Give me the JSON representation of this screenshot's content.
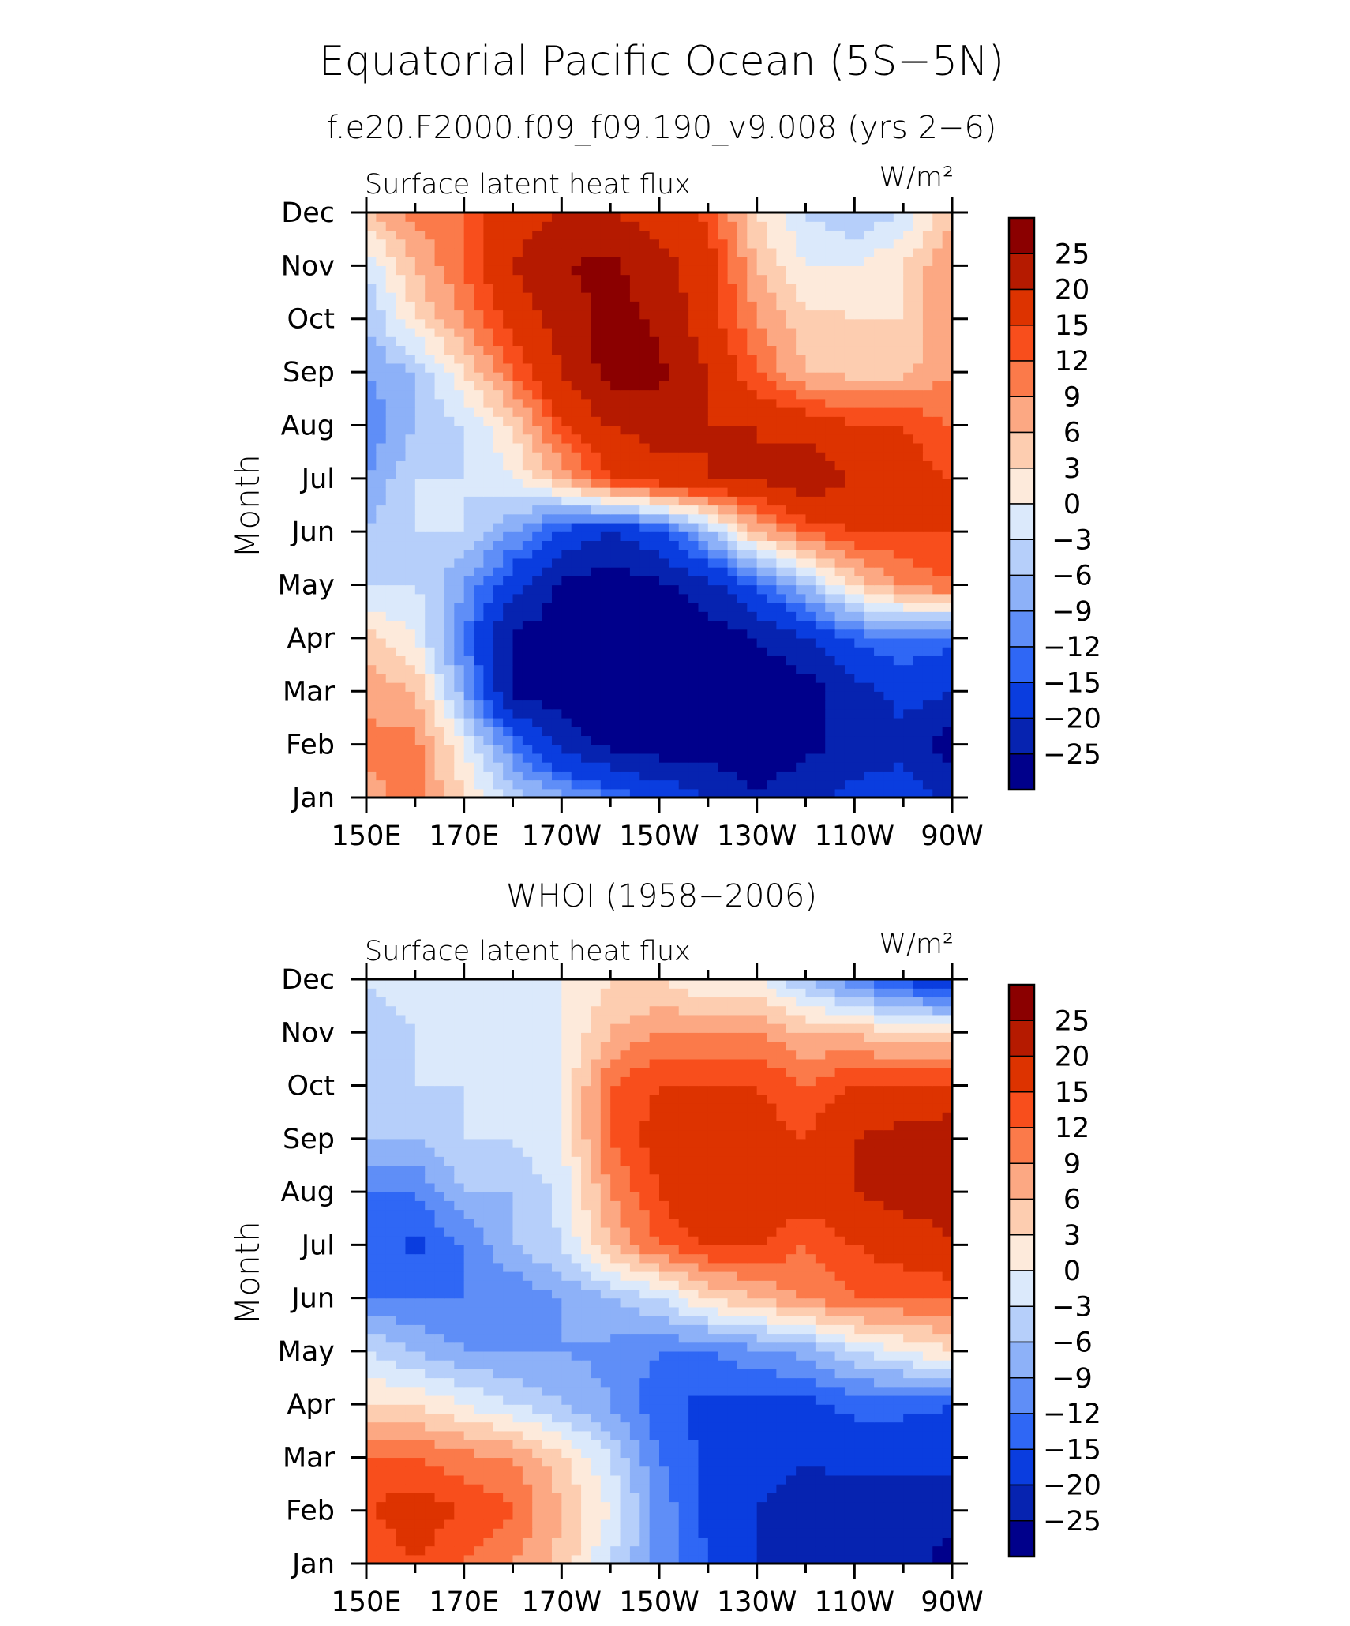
{
  "main_title": "Equatorial Pacific Ocean (5S−5N)",
  "chart_data": [
    {
      "type": "heatmap",
      "title": "f.e20.F2000.f09_f09.190_v9.008 (yrs 2−6)",
      "left_label": "Surface latent heat flux",
      "units_label": "W/m²",
      "ylabel": "Month",
      "xlabel": "",
      "x_ticks": [
        "150E",
        "170E",
        "170W",
        "150W",
        "130W",
        "110W",
        "90W"
      ],
      "y_ticks": [
        "Jan",
        "Feb",
        "Mar",
        "Apr",
        "May",
        "Jun",
        "Jul",
        "Aug",
        "Sep",
        "Oct",
        "Nov",
        "Dec"
      ],
      "x_range_deg_east": [
        150,
        270
      ],
      "levels": [
        "25",
        "20",
        "15",
        "12",
        "9",
        "6",
        "3",
        "0",
        "−3",
        "−6",
        "−9",
        "−12",
        "−15",
        "−20",
        "−25"
      ],
      "colors": [
        "#8b0000",
        "#b51a00",
        "#dd3300",
        "#f84e1c",
        "#fb7a4a",
        "#fca883",
        "#fdcdb0",
        "#fdeadb",
        "#dbe9fb",
        "#b6cffa",
        "#8db1f8",
        "#5f8ef7",
        "#2f67f5",
        "#0a3ddf",
        "#0623b0",
        "#00008b"
      ],
      "x_lon": [
        150,
        160,
        170,
        180,
        190,
        200,
        210,
        220,
        230,
        240,
        250,
        260,
        270
      ],
      "values": [
        [
          8,
          10,
          3,
          -4,
          -8,
          -12,
          -16,
          -20,
          -25,
          -22,
          -18,
          -16,
          -22
        ],
        [
          10,
          10,
          0,
          -12,
          -22,
          -26,
          -28,
          -28,
          -28,
          -26,
          -24,
          -22,
          -28
        ],
        [
          8,
          6,
          -8,
          -26,
          -28,
          -30,
          -30,
          -30,
          -30,
          -28,
          -22,
          -18,
          -20
        ],
        [
          4,
          0,
          -12,
          -26,
          -28,
          -30,
          -30,
          -28,
          -25,
          -20,
          -14,
          -12,
          -14
        ],
        [
          -3,
          -3,
          -9,
          -18,
          -26,
          -28,
          -26,
          -22,
          -14,
          -6,
          4,
          9,
          12
        ],
        [
          -6,
          -3,
          -3,
          -9,
          -16,
          -20,
          -16,
          -6,
          6,
          12,
          15,
          15,
          15
        ],
        [
          -9,
          -3,
          -3,
          0,
          6,
          15,
          18,
          20,
          20,
          24,
          20,
          17,
          15
        ],
        [
          -12,
          -6,
          -3,
          3,
          15,
          20,
          22,
          20,
          20,
          18,
          15,
          15,
          12
        ],
        [
          -9,
          -6,
          3,
          12,
          20,
          27,
          26,
          20,
          12,
          6,
          5,
          5,
          9
        ],
        [
          -6,
          3,
          9,
          17,
          22,
          27,
          24,
          17,
          9,
          4,
          3,
          3,
          9
        ],
        [
          -3,
          6,
          12,
          20,
          25,
          26,
          22,
          17,
          6,
          0,
          0,
          3,
          9
        ],
        [
          6,
          10,
          12,
          18,
          20,
          20,
          18,
          14,
          3,
          -3,
          -6,
          -3,
          6
        ]
      ]
    },
    {
      "type": "heatmap",
      "title": "WHOI (1958−2006)",
      "left_label": "Surface latent heat flux",
      "units_label": "W/m²",
      "ylabel": "Month",
      "xlabel": "",
      "x_ticks": [
        "150E",
        "170E",
        "170W",
        "150W",
        "130W",
        "110W",
        "90W"
      ],
      "y_ticks": [
        "Jan",
        "Feb",
        "Mar",
        "Apr",
        "May",
        "Jun",
        "Jul",
        "Aug",
        "Sep",
        "Oct",
        "Nov",
        "Dec"
      ],
      "x_range_deg_east": [
        150,
        270
      ],
      "levels": [
        "25",
        "20",
        "15",
        "12",
        "9",
        "6",
        "3",
        "0",
        "−3",
        "−6",
        "−9",
        "−12",
        "−15",
        "−20",
        "−25"
      ],
      "colors": [
        "#8b0000",
        "#b51a00",
        "#dd3300",
        "#f84e1c",
        "#fb7a4a",
        "#fca883",
        "#fdcdb0",
        "#fdeadb",
        "#dbe9fb",
        "#b6cffa",
        "#8db1f8",
        "#5f8ef7",
        "#2f67f5",
        "#0a3ddf",
        "#0623b0",
        "#00008b"
      ],
      "x_lon": [
        150,
        160,
        170,
        180,
        190,
        200,
        210,
        220,
        230,
        240,
        250,
        260,
        270
      ],
      "values": [
        [
          12,
          15,
          12,
          9,
          5,
          -3,
          -10,
          -15,
          -20,
          -22,
          -22,
          -24,
          -26
        ],
        [
          15,
          17,
          15,
          12,
          6,
          0,
          -10,
          -16,
          -20,
          -22,
          -24,
          -24,
          -24
        ],
        [
          12,
          12,
          10,
          9,
          4,
          -3,
          -12,
          -16,
          -18,
          -20,
          -18,
          -18,
          -18
        ],
        [
          3,
          3,
          0,
          -3,
          -6,
          -9,
          -14,
          -16,
          -16,
          -16,
          -14,
          -14,
          -15
        ],
        [
          -3,
          -6,
          -9,
          -9,
          -9,
          -10,
          -12,
          -12,
          -10,
          -8,
          -3,
          0,
          3
        ],
        [
          -12,
          -12,
          -12,
          -12,
          -9,
          -6,
          -3,
          3,
          6,
          9,
          12,
          12,
          12
        ],
        [
          -13,
          -16,
          -12,
          -6,
          -3,
          6,
          12,
          15,
          15,
          12,
          15,
          17,
          20
        ],
        [
          -12,
          -12,
          -6,
          -6,
          -2,
          9,
          15,
          20,
          20,
          17,
          20,
          22,
          22
        ],
        [
          -6,
          -6,
          -3,
          -3,
          0,
          12,
          17,
          20,
          17,
          15,
          20,
          22,
          24
        ],
        [
          -3,
          -3,
          -3,
          -3,
          0,
          12,
          15,
          15,
          15,
          12,
          15,
          15,
          15
        ],
        [
          -6,
          -3,
          -3,
          -3,
          0,
          6,
          9,
          9,
          9,
          6,
          6,
          3,
          3
        ],
        [
          -3,
          0,
          0,
          0,
          0,
          3,
          3,
          0,
          0,
          -6,
          -12,
          -16,
          -20
        ]
      ]
    }
  ]
}
